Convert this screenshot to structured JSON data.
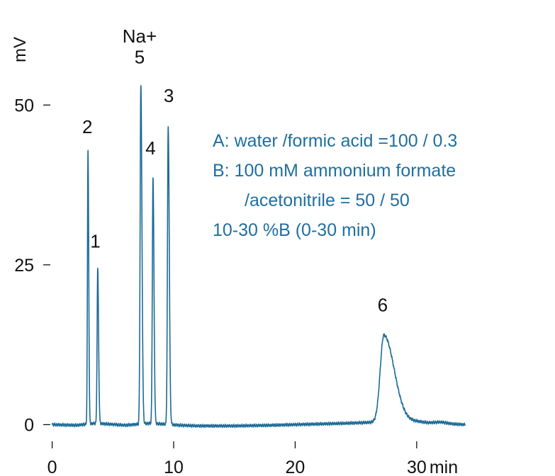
{
  "chart_data": {
    "type": "line",
    "title": "",
    "xlabel": "",
    "ylabel": "",
    "x_unit": "min",
    "y_unit": "mV",
    "xlim": [
      -0.5,
      34.5
    ],
    "ylim": [
      -1.5,
      62
    ],
    "x_ticks": [
      {
        "value": 0,
        "label": "0"
      },
      {
        "value": 10,
        "label": "10"
      },
      {
        "value": 20,
        "label": "20"
      },
      {
        "value": 30,
        "label": "30"
      }
    ],
    "y_ticks": [
      {
        "value": 0,
        "label": "0"
      },
      {
        "value": 25,
        "label": "25"
      },
      {
        "value": 50,
        "label": "50"
      }
    ],
    "line_color": "#1c6b96",
    "annotation_color": "#1f6fa0",
    "grid": false,
    "baseline": [
      [
        0,
        0.0
      ],
      [
        2.0,
        -0.1
      ],
      [
        3.5,
        0.2
      ],
      [
        4.5,
        0.1
      ],
      [
        6.0,
        -0.1
      ],
      [
        8.0,
        0.2
      ],
      [
        9.0,
        0.1
      ],
      [
        10.5,
        -0.1
      ],
      [
        12.0,
        -0.2
      ],
      [
        15.0,
        -0.2
      ],
      [
        18.0,
        -0.1
      ],
      [
        20.0,
        0.0
      ],
      [
        22.0,
        0.1
      ],
      [
        24.0,
        0.2
      ],
      [
        25.5,
        0.3
      ],
      [
        26.8,
        0.4
      ],
      [
        28.5,
        0.4
      ],
      [
        30.0,
        0.5
      ],
      [
        31.0,
        0.3
      ],
      [
        32.0,
        0.4
      ],
      [
        33.0,
        0.1
      ],
      [
        34.0,
        0.0
      ]
    ],
    "peaks": [
      {
        "label": "2",
        "rt": 2.95,
        "height": 42.6,
        "sigma": 0.045,
        "tail": 0.06,
        "label_x": 2.9,
        "label_y": 45.6
      },
      {
        "label": "1",
        "rt": 3.75,
        "height": 24.2,
        "sigma": 0.05,
        "tail": 0.07,
        "label_x": 3.55,
        "label_y": 27.7
      },
      {
        "label": "5",
        "rt": 7.3,
        "height": 53.0,
        "sigma": 0.06,
        "tail": 0.09,
        "label_x": 7.2,
        "label_y": 56.5
      },
      {
        "label": "4",
        "rt": 8.3,
        "height": 38.4,
        "sigma": 0.055,
        "tail": 0.08,
        "label_x": 8.1,
        "label_y": 42.3
      },
      {
        "label": "3",
        "rt": 9.55,
        "height": 46.5,
        "sigma": 0.06,
        "tail": 0.09,
        "label_x": 9.6,
        "label_y": 50.5
      },
      {
        "label": "6",
        "rt": 27.3,
        "height": 13.6,
        "sigma": 0.3,
        "tail": 0.85,
        "label_x": 27.2,
        "label_y": 17.7
      }
    ],
    "annotations": [
      {
        "text": "Na+",
        "x": 7.2,
        "y": 59.8
      }
    ]
  },
  "conditions": [
    "A: water /formic acid =100 / 0.3",
    "B: 100 mM ammonium formate",
    "/acetonitrile = 50 / 50",
    "10-30 %B (0-30 min)"
  ]
}
